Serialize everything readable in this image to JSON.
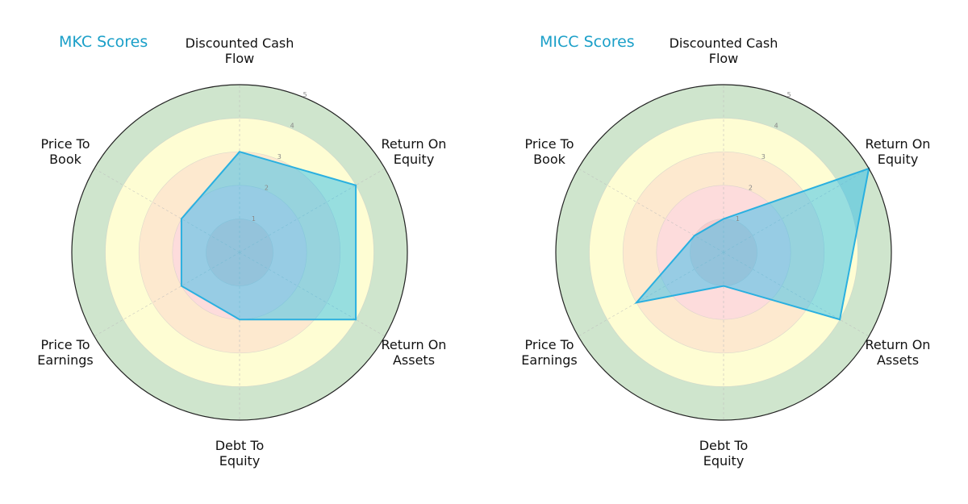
{
  "chart_data": [
    {
      "type": "radar",
      "title": "MKC Scores",
      "categories": [
        "Discounted Cash Flow",
        "Return On Equity",
        "Return On Assets",
        "Debt To Equity",
        "Price To Earnings",
        "Price To Book"
      ],
      "series": [
        {
          "name": "MKC",
          "values": [
            3,
            4,
            4,
            2,
            2,
            2
          ]
        }
      ],
      "rlim": [
        0,
        5
      ],
      "rticks": [
        1,
        2,
        3,
        4,
        5
      ],
      "grid": true,
      "band_colors": [
        "#f7cccc",
        "#fddcdc",
        "#fde9cf",
        "#fefdd3",
        "#cfe5cd"
      ],
      "line_color": "#2ab0e0",
      "fill_color": "#1ab8ee"
    },
    {
      "type": "radar",
      "title": "MICC Scores",
      "categories": [
        "Discounted Cash Flow",
        "Return On Equity",
        "Return On Assets",
        "Debt To Equity",
        "Price To Earnings",
        "Price To Book"
      ],
      "series": [
        {
          "name": "MICC",
          "values": [
            1,
            5,
            4,
            1,
            3,
            1
          ]
        }
      ],
      "rlim": [
        0,
        5
      ],
      "rticks": [
        1,
        2,
        3,
        4,
        5
      ],
      "grid": true,
      "band_colors": [
        "#f7cccc",
        "#fddcdc",
        "#fde9cf",
        "#fefdd3",
        "#cfe5cd"
      ],
      "line_color": "#2ab0e0",
      "fill_color": "#1ab8ee"
    }
  ],
  "panels": [
    {
      "title": "MKC Scores",
      "labels": {
        "dcf": [
          "Discounted Cash",
          "Flow"
        ],
        "roe": [
          "Return On",
          "Equity"
        ],
        "roa": [
          "Return On",
          "Assets"
        ],
        "de": [
          "Debt To",
          "Equity"
        ],
        "pe": [
          "Price To",
          "Earnings"
        ],
        "pb": [
          "Price To",
          "Book"
        ]
      }
    },
    {
      "title": "MICC Scores",
      "labels": {
        "dcf": [
          "Discounted Cash",
          "Flow"
        ],
        "roe": [
          "Return On",
          "Equity"
        ],
        "roa": [
          "Return On",
          "Assets"
        ],
        "de": [
          "Debt To",
          "Equity"
        ],
        "pe": [
          "Price To",
          "Earnings"
        ],
        "pb": [
          "Price To",
          "Book"
        ]
      }
    }
  ],
  "colors": {
    "title": "#1a9fc8",
    "outline": "#222222"
  }
}
